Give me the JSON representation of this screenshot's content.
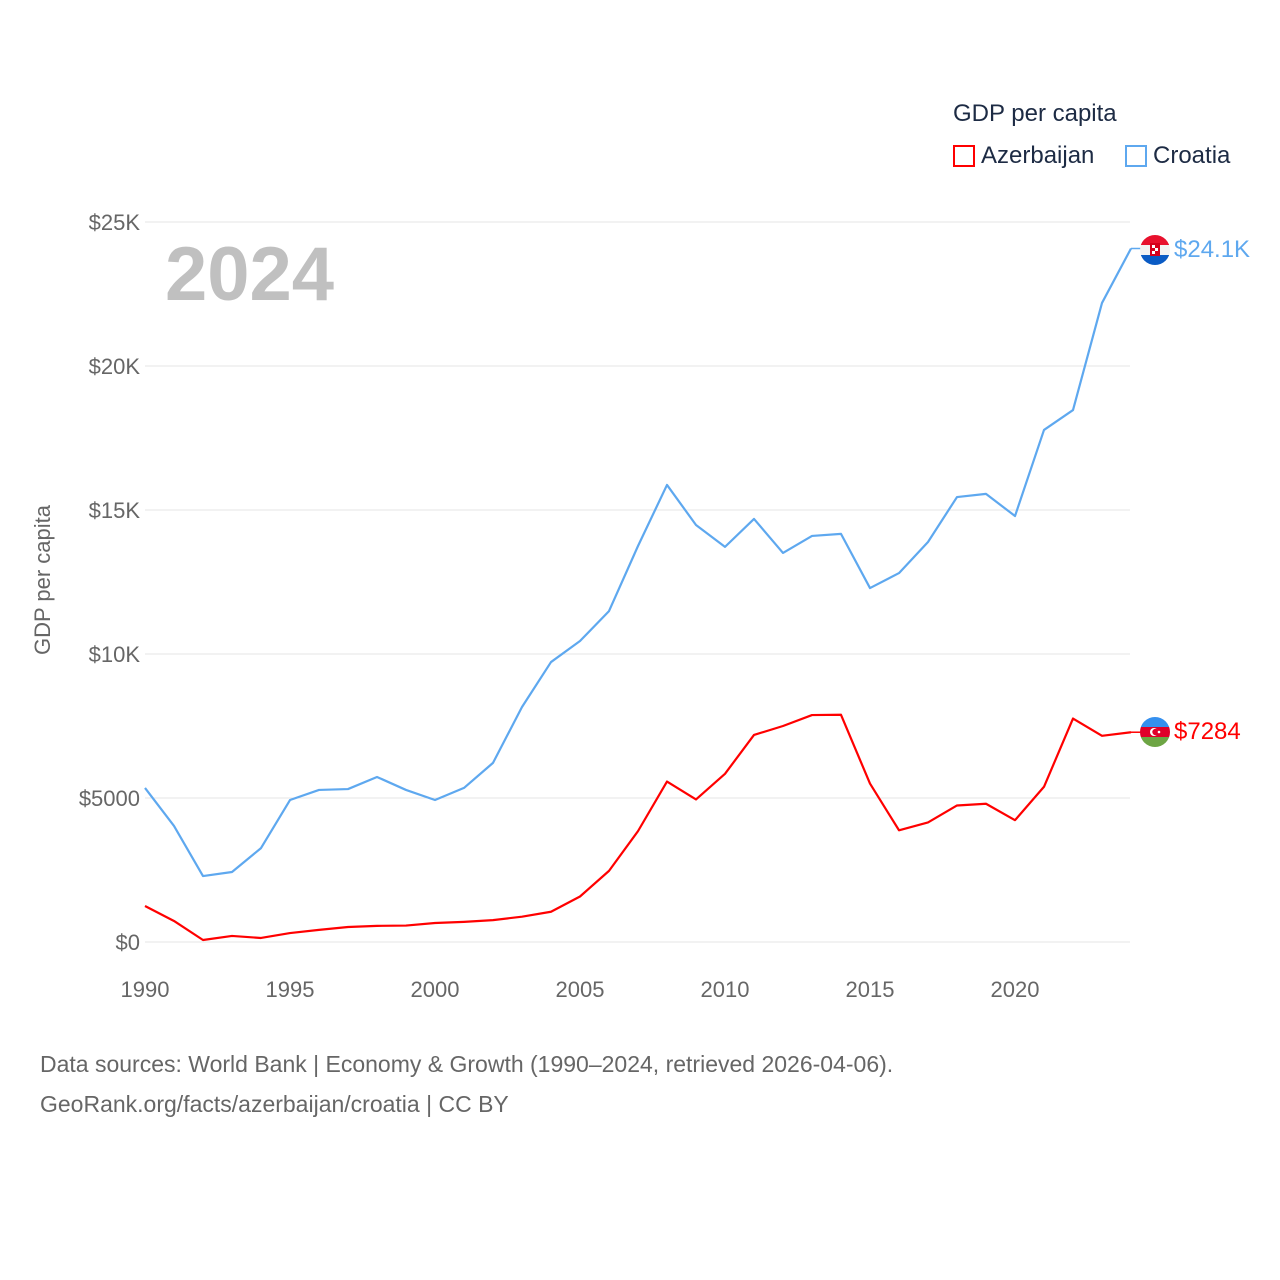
{
  "chart_data": {
    "type": "line",
    "title": "GDP per capita",
    "year_label": "2024",
    "xlabel": "",
    "ylabel": "GDP per capita",
    "xlim": [
      1990,
      2024
    ],
    "ylim": [
      0,
      25000
    ],
    "x_ticks": [
      1990,
      1995,
      2000,
      2005,
      2010,
      2015,
      2020
    ],
    "x_tick_labels": [
      "1990",
      "1995",
      "2000",
      "2005",
      "2010",
      "2015",
      "2020"
    ],
    "y_ticks": [
      0,
      5000,
      10000,
      15000,
      20000,
      25000
    ],
    "y_tick_labels": [
      "$0",
      "$5000",
      "$10K",
      "$15K",
      "$20K",
      "$25K"
    ],
    "grid": true,
    "legend_placement": "top-right",
    "x": [
      1990,
      1991,
      1992,
      1993,
      1994,
      1995,
      1996,
      1997,
      1998,
      1999,
      2000,
      2001,
      2002,
      2003,
      2004,
      2005,
      2006,
      2007,
      2008,
      2009,
      2010,
      2011,
      2012,
      2013,
      2014,
      2015,
      2016,
      2017,
      2018,
      2019,
      2020,
      2021,
      2022,
      2023,
      2024
    ],
    "series": [
      {
        "name": "Azerbaijan",
        "color": "#ff0000",
        "end_label": "$7284",
        "values": [
          1250,
          730,
          70,
          210,
          140,
          310,
          420,
          520,
          560,
          570,
          660,
          700,
          760,
          880,
          1050,
          1580,
          2470,
          3850,
          5570,
          4950,
          5840,
          7190,
          7500,
          7880,
          7890,
          5500,
          3880,
          4150,
          4740,
          4800,
          4230,
          5390,
          7760,
          7160,
          7284
        ]
      },
      {
        "name": "Croatia",
        "color": "#5ea8ef",
        "end_label": "$24.1K",
        "values": [
          5350,
          4030,
          2290,
          2430,
          3260,
          4930,
          5280,
          5310,
          5730,
          5280,
          4930,
          5350,
          6220,
          8160,
          9720,
          10450,
          11490,
          13750,
          15870,
          14480,
          13720,
          14690,
          13510,
          14100,
          14170,
          12290,
          12810,
          13890,
          15450,
          15560,
          14790,
          17780,
          18470,
          22190,
          24080
        ]
      }
    ]
  },
  "footer": {
    "line1": "Data sources: World Bank | Economy & Growth (1990–2024, retrieved 2026-04-06).",
    "line2": "GeoRank.org/facts/azerbaijan/croatia | CC BY"
  }
}
